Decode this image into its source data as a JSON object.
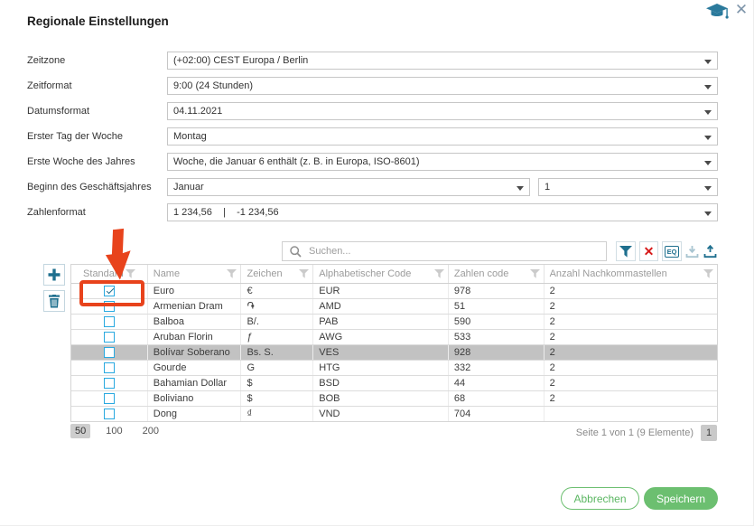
{
  "dialog": {
    "title": "Regionale Einstellungen"
  },
  "form": {
    "fields": [
      {
        "label": "Zeitzone",
        "value": "(+02:00) CEST Europa / Berlin"
      },
      {
        "label": "Zeitformat",
        "value": "9:00 (24 Stunden)"
      },
      {
        "label": "Datumsformat",
        "value": "04.11.2021"
      },
      {
        "label": "Erster Tag der Woche",
        "value": "Montag"
      },
      {
        "label": "Erste Woche des Jahres",
        "value": "Woche, die Januar 6 enthält (z. B. in Europa, ISO-8601)"
      }
    ],
    "fiscal": {
      "label": "Beginn des Geschäftsjahres",
      "month": "Januar",
      "day": "1"
    },
    "number_format": {
      "label": "Zahlenformat",
      "value": "1 234,56    |    -1 234,56"
    }
  },
  "toolbar": {
    "search_placeholder": "Suchen...",
    "eq_icon_text": "EQ"
  },
  "table": {
    "columns": [
      "Standard",
      "Name",
      "Zeichen",
      "Alphabetischer Code",
      "Zahlen code",
      "Anzahl Nachkommastellen"
    ],
    "rows": [
      {
        "checked": true,
        "selected": false,
        "name": "Euro",
        "zeichen": "€",
        "alpha": "EUR",
        "num": "978",
        "dec": "2"
      },
      {
        "checked": false,
        "selected": false,
        "name": "Armenian Dram",
        "zeichen": "֏",
        "alpha": "AMD",
        "num": "51",
        "dec": "2"
      },
      {
        "checked": false,
        "selected": false,
        "name": "Balboa",
        "zeichen": "B/.",
        "alpha": "PAB",
        "num": "590",
        "dec": "2"
      },
      {
        "checked": false,
        "selected": false,
        "name": "Aruban Florin",
        "zeichen": "ƒ",
        "alpha": "AWG",
        "num": "533",
        "dec": "2"
      },
      {
        "checked": false,
        "selected": true,
        "name": "Bolívar Soberano",
        "zeichen": "Bs. S.",
        "alpha": "VES",
        "num": "928",
        "dec": "2"
      },
      {
        "checked": false,
        "selected": false,
        "name": "Gourde",
        "zeichen": "G",
        "alpha": "HTG",
        "num": "332",
        "dec": "2"
      },
      {
        "checked": false,
        "selected": false,
        "name": "Bahamian Dollar",
        "zeichen": "$",
        "alpha": "BSD",
        "num": "44",
        "dec": "2"
      },
      {
        "checked": false,
        "selected": false,
        "name": "Boliviano",
        "zeichen": "$",
        "alpha": "BOB",
        "num": "68",
        "dec": "2"
      },
      {
        "checked": false,
        "selected": false,
        "name": "Dong",
        "zeichen": "₫",
        "alpha": "VND",
        "num": "704",
        "dec": ""
      }
    ]
  },
  "pagination": {
    "sizes": [
      "50",
      "100",
      "200"
    ],
    "active_size": "50",
    "info": "Seite 1 von 1 (9 Elemente)",
    "current_page": "1"
  },
  "actions": {
    "cancel": "Abbrechen",
    "save": "Speichern"
  },
  "colors": {
    "accent_teal": "#1e6f8e",
    "green": "#6cbf70",
    "annotation_red": "#e8431c",
    "checkbox_blue": "#29a9e0",
    "clear_red": "#d61a1a",
    "selected_row": "#c2c2c2"
  }
}
